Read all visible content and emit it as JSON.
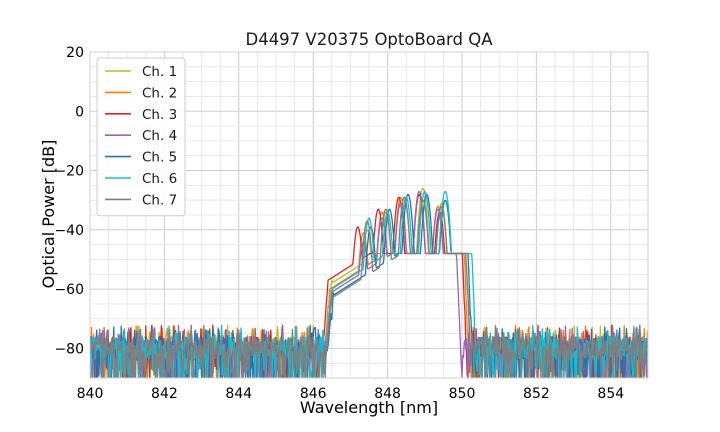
{
  "chart_data": {
    "type": "line",
    "title": "D4497 V20375 OptoBoard QA",
    "xlabel": "Wavelength [nm]",
    "ylabel": "Optical Power [dB]",
    "xlim": [
      840,
      855
    ],
    "ylim": [
      -90,
      20
    ],
    "xticks": [
      840,
      842,
      844,
      846,
      848,
      850,
      852,
      854
    ],
    "yticks": [
      20,
      0,
      -20,
      -40,
      -60,
      -80
    ],
    "xtick_labels": [
      "840",
      "842",
      "844",
      "846",
      "848",
      "850",
      "852",
      "854"
    ],
    "ytick_labels": [
      "20",
      "0",
      "−20",
      "−40",
      "−60",
      "−80"
    ],
    "grid": true,
    "minor_grid": true,
    "legend_position": "top-left",
    "noise_floor_db": -80,
    "series": [
      {
        "name": "Ch. 1",
        "color": "#bcbd22",
        "peak_wavelengths": [
          847.45,
          847.95,
          848.45,
          848.95,
          849.45
        ],
        "peak_values": [
          -40,
          -34,
          -29,
          -26,
          -31
        ],
        "band_edges": [
          846.5,
          850.1
        ],
        "shoulder_db": -58
      },
      {
        "name": "Ch. 2",
        "color": "#ff7f0e",
        "peak_wavelengths": [
          847.35,
          847.85,
          848.35,
          848.85,
          849.35
        ],
        "peak_values": [
          -41,
          -34,
          -29,
          -28,
          -32
        ],
        "band_edges": [
          846.45,
          850.05
        ],
        "shoulder_db": -60
      },
      {
        "name": "Ch. 3",
        "color": "#d62728",
        "peak_wavelengths": [
          847.2,
          847.75,
          848.3,
          848.85,
          849.4
        ],
        "peak_values": [
          -39,
          -33,
          -29,
          -28,
          -34
        ],
        "band_edges": [
          846.4,
          850.0
        ],
        "shoulder_db": -57
      },
      {
        "name": "Ch. 4",
        "color": "#9467bd",
        "peak_wavelengths": [
          847.35,
          847.85,
          848.35,
          848.85,
          849.35
        ],
        "peak_values": [
          -44,
          -36,
          -31,
          -27,
          -33
        ],
        "band_edges": [
          846.5,
          849.85
        ],
        "shoulder_db": -61
      },
      {
        "name": "Ch. 5",
        "color": "#1f77b4",
        "peak_wavelengths": [
          847.55,
          848.05,
          848.55,
          849.05,
          849.55
        ],
        "peak_values": [
          -39,
          -33,
          -28,
          -28,
          -30
        ],
        "band_edges": [
          846.55,
          850.15
        ],
        "shoulder_db": -62
      },
      {
        "name": "Ch. 6",
        "color": "#17becf",
        "peak_wavelengths": [
          847.5,
          848.0,
          848.5,
          849.0,
          849.55
        ],
        "peak_values": [
          -36,
          -34,
          -29,
          -27,
          -27
        ],
        "band_edges": [
          846.5,
          850.25
        ],
        "shoulder_db": -60
      },
      {
        "name": "Ch. 7",
        "color": "#7f7f7f",
        "peak_wavelengths": [
          847.45,
          847.95,
          848.45,
          848.95,
          849.45
        ],
        "peak_values": [
          -37,
          -33,
          -29,
          -30,
          -32
        ],
        "band_edges": [
          846.5,
          850.1
        ],
        "shoulder_db": -63
      }
    ]
  }
}
